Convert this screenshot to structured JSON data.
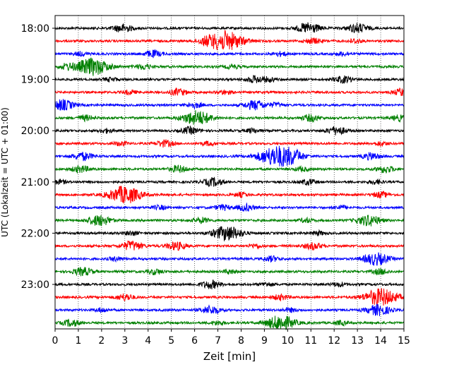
{
  "chart_data": {
    "type": "line",
    "title": "",
    "xlabel": "Zeit  [min]",
    "ylabel": "UTC (Lokalzeit = UTC + 01:00)",
    "xlim": [
      0,
      15
    ],
    "x_ticks": [
      "0",
      "1",
      "2",
      "3",
      "4",
      "5",
      "6",
      "7",
      "8",
      "9",
      "10",
      "11",
      "12",
      "13",
      "14",
      "15"
    ],
    "y_tick_labels": [
      "18:00",
      "19:00",
      "20:00",
      "21:00",
      "22:00",
      "23:00"
    ],
    "x_grid": true,
    "y_grid": false,
    "colors": {
      "black": "#000000",
      "red": "#ff0000",
      "blue": "#0000ff",
      "green": "#008000"
    },
    "series_color_cycle": [
      "black",
      "red",
      "blue",
      "green"
    ],
    "trace_start_times": [
      "18:00",
      "18:15",
      "18:30",
      "18:45",
      "19:00",
      "19:15",
      "19:30",
      "19:45",
      "20:00",
      "20:15",
      "20:30",
      "20:45",
      "21:00",
      "21:15",
      "21:30",
      "21:45",
      "22:00",
      "22:15",
      "22:30",
      "22:45",
      "23:00",
      "23:15",
      "23:30",
      "23:45"
    ],
    "events": [
      [
        [
          2.9,
          0.6
        ],
        [
          10.9,
          0.8
        ],
        [
          13.0,
          0.7
        ]
      ],
      [
        [
          7.3,
          1.5
        ],
        [
          11.1,
          0.4
        ],
        [
          6.5,
          0.3
        ],
        [
          12.9,
          0.3
        ]
      ],
      [
        [
          1.1,
          0.3
        ],
        [
          4.2,
          0.5
        ],
        [
          9.7,
          0.3
        ],
        [
          12.4,
          0.3
        ]
      ],
      [
        [
          1.6,
          1.3
        ],
        [
          0.5,
          0.4
        ],
        [
          3.8,
          0.4
        ],
        [
          7.6,
          0.3
        ]
      ],
      [
        [
          8.6,
          0.5
        ],
        [
          12.4,
          0.5
        ],
        [
          2.4,
          0.3
        ],
        [
          9.2,
          0.3
        ]
      ],
      [
        [
          5.3,
          0.5
        ],
        [
          15.0,
          0.6
        ],
        [
          3.2,
          0.3
        ],
        [
          7.3,
          0.3
        ]
      ],
      [
        [
          0.3,
          0.8
        ],
        [
          8.6,
          0.7
        ],
        [
          6.0,
          0.4
        ],
        [
          9.5,
          0.3
        ]
      ],
      [
        [
          6.1,
          1.1
        ],
        [
          11.0,
          0.5
        ],
        [
          1.3,
          0.4
        ],
        [
          14.8,
          0.4
        ]
      ],
      [
        [
          12.1,
          0.6
        ],
        [
          5.8,
          0.5
        ],
        [
          2.2,
          0.3
        ],
        [
          8.5,
          0.3
        ]
      ],
      [
        [
          4.7,
          0.5
        ],
        [
          6.6,
          0.3
        ],
        [
          14.0,
          0.3
        ],
        [
          2.8,
          0.3
        ]
      ],
      [
        [
          9.6,
          1.6
        ],
        [
          1.2,
          0.6
        ],
        [
          13.6,
          0.5
        ],
        [
          10.3,
          0.4
        ]
      ],
      [
        [
          1.1,
          0.5
        ],
        [
          5.3,
          0.5
        ],
        [
          14.2,
          0.5
        ],
        [
          10.6,
          0.3
        ]
      ],
      [
        [
          6.8,
          0.6
        ],
        [
          10.9,
          0.4
        ],
        [
          0.2,
          0.3
        ],
        [
          13.8,
          0.3
        ]
      ],
      [
        [
          3.0,
          1.3
        ],
        [
          14.0,
          0.4
        ],
        [
          8.0,
          0.3
        ]
      ],
      [
        [
          7.2,
          0.4
        ],
        [
          8.2,
          0.5
        ],
        [
          4.5,
          0.3
        ],
        [
          12.3,
          0.3
        ]
      ],
      [
        [
          1.9,
          0.8
        ],
        [
          13.5,
          0.8
        ],
        [
          6.3,
          0.4
        ],
        [
          10.8,
          0.3
        ]
      ],
      [
        [
          7.4,
          1.1
        ],
        [
          3.3,
          0.3
        ],
        [
          11.3,
          0.3
        ]
      ],
      [
        [
          3.3,
          0.7
        ],
        [
          5.2,
          0.6
        ],
        [
          11.1,
          0.5
        ],
        [
          8.6,
          0.3
        ]
      ],
      [
        [
          13.8,
          0.9
        ],
        [
          2.6,
          0.3
        ],
        [
          9.3,
          0.4
        ]
      ],
      [
        [
          1.2,
          0.6
        ],
        [
          4.3,
          0.4
        ],
        [
          14.0,
          0.4
        ],
        [
          7.5,
          0.3
        ]
      ],
      [
        [
          6.7,
          0.6
        ],
        [
          9.1,
          0.3
        ],
        [
          12.2,
          0.3
        ]
      ],
      [
        [
          14.0,
          1.3
        ],
        [
          3.0,
          0.5
        ],
        [
          9.7,
          0.4
        ]
      ],
      [
        [
          6.7,
          0.6
        ],
        [
          13.9,
          0.8
        ],
        [
          10.1,
          0.3
        ],
        [
          2.0,
          0.3
        ]
      ],
      [
        [
          9.7,
          1.1
        ],
        [
          0.7,
          0.5
        ],
        [
          7.0,
          0.3
        ],
        [
          12.3,
          0.3
        ]
      ]
    ]
  }
}
